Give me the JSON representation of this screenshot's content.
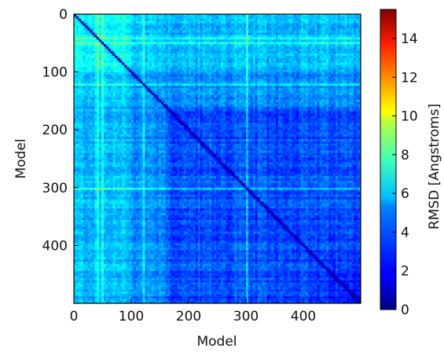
{
  "chart_data": {
    "type": "heatmap",
    "title": "",
    "xlabel": "Model",
    "ylabel": "Model",
    "xlim": [
      0,
      500
    ],
    "ylim": [
      0,
      500
    ],
    "y_inverted": true,
    "x_ticks": [
      0,
      100,
      200,
      300,
      400
    ],
    "y_ticks": [
      0,
      100,
      200,
      300,
      400
    ],
    "n_models": 500,
    "colormap": "jet",
    "colorbar": {
      "label": "RMSD [Angstroms]",
      "range": [
        0,
        15.5
      ],
      "ticks": [
        0,
        2,
        4,
        6,
        8,
        10,
        12,
        14
      ]
    },
    "description_values": {
      "diagonal_rmsd": 0,
      "typical_rmsd_range": [
        3,
        7
      ],
      "max_observed_rmsd": 8.5
    },
    "grid": false
  }
}
